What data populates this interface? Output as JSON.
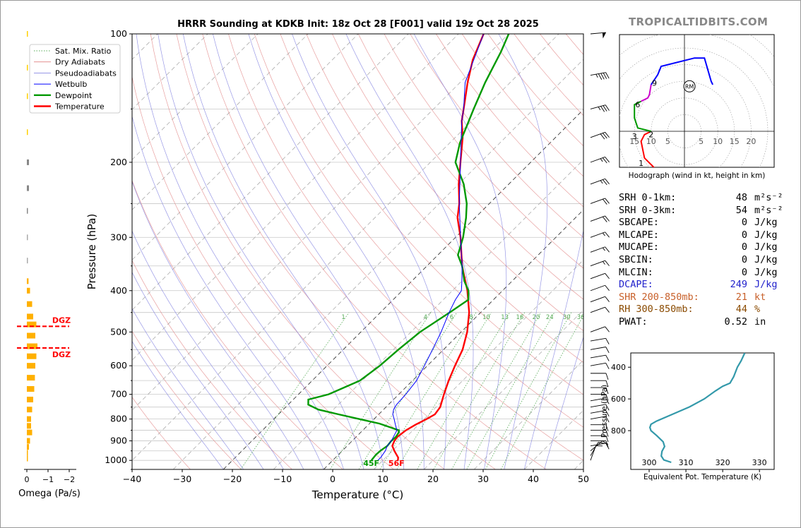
{
  "title": "HRRR Sounding at KDKB Init: 18z Oct 28 [F001] valid 19z Oct 28 2025",
  "brand": "TROPICALTIDBITS.COM",
  "colors": {
    "temperature": "#ff0000",
    "dewpoint": "#009900",
    "wetbulb": "#0000ff",
    "dcape": "#2222cc",
    "shr": "#c8602a",
    "rh": "#8a4a00",
    "omega": "#ffb000",
    "dgz": "#ff0000"
  },
  "chart_data": [
    {
      "type": "line",
      "name": "skewt",
      "xlabel": "Temperature (°C)",
      "ylabel": "Pressure (hPa)",
      "xlim": [
        -40,
        50
      ],
      "ylim": [
        1050,
        100
      ],
      "y_scale": "log",
      "x_ticks": [
        "−40",
        "−30",
        "−20",
        "−10",
        "0",
        "10",
        "20",
        "30",
        "40",
        "50"
      ],
      "y_ticks": [
        "100",
        "200",
        "300",
        "400",
        "500",
        "600",
        "700",
        "800",
        "900",
        "1000"
      ],
      "legend": [
        "Sat. Mix. Ratio",
        "Dry Adiabats",
        "Pseudoadiabats",
        "Wetbulb",
        "Dewpoint",
        "Temperature"
      ],
      "legend_placement": "top-left",
      "mixing_ratio_labels": [
        "1",
        "4",
        "6",
        "8",
        "10",
        "13",
        "16",
        "20",
        "24",
        "30",
        "36"
      ],
      "surface_labels": {
        "dewpoint": "45F",
        "temperature": "56F"
      },
      "series": [
        {
          "name": "Temperature",
          "points": [
            [
              1000,
              13
            ],
            [
              985,
              12.5
            ],
            [
              950,
              10.4
            ],
            [
              925,
              9
            ],
            [
              900,
              8.4
            ],
            [
              880,
              8.2
            ],
            [
              850,
              8.6
            ],
            [
              825,
              9.4
            ],
            [
              800,
              10.5
            ],
            [
              780,
              11.2
            ],
            [
              750,
              10.8
            ],
            [
              700,
              9
            ],
            [
              650,
              7.2
            ],
            [
              600,
              5.5
            ],
            [
              550,
              3.8
            ],
            [
              500,
              1.2
            ],
            [
              450,
              -2.3
            ],
            [
              400,
              -7
            ],
            [
              350,
              -13
            ],
            [
              300,
              -19
            ],
            [
              270,
              -23.5
            ],
            [
              250,
              -26
            ],
            [
              225,
              -30
            ],
            [
              200,
              -34
            ],
            [
              175,
              -38.5
            ],
            [
              160,
              -42
            ],
            [
              150,
              -44
            ],
            [
              130,
              -48.5
            ],
            [
              115,
              -52
            ],
            [
              100,
              -55
            ]
          ]
        },
        {
          "name": "Dewpoint",
          "points": [
            [
              1000,
              7.7
            ],
            [
              970,
              7.5
            ],
            [
              950,
              7.6
            ],
            [
              925,
              8
            ],
            [
              900,
              7.8
            ],
            [
              880,
              7.9
            ],
            [
              860,
              7.6
            ],
            [
              850,
              7.2
            ],
            [
              820,
              2
            ],
            [
              800,
              -3
            ],
            [
              780,
              -8
            ],
            [
              760,
              -13
            ],
            [
              740,
              -16
            ],
            [
              720,
              -17
            ],
            [
              700,
              -14
            ],
            [
              650,
              -10.5
            ],
            [
              600,
              -9.5
            ],
            [
              550,
              -9
            ],
            [
              500,
              -8.2
            ],
            [
              450,
              -6.2
            ],
            [
              420,
              -5
            ],
            [
              400,
              -6.8
            ],
            [
              380,
              -9.5
            ],
            [
              350,
              -13
            ],
            [
              330,
              -16
            ],
            [
              300,
              -18.5
            ],
            [
              270,
              -21.8
            ],
            [
              250,
              -24.5
            ],
            [
              225,
              -29
            ],
            [
              200,
              -35
            ],
            [
              180,
              -38
            ],
            [
              150,
              -42
            ],
            [
              130,
              -45
            ],
            [
              110,
              -48
            ],
            [
              100,
              -50
            ]
          ]
        },
        {
          "name": "Wetbulb",
          "points": [
            [
              1000,
              9
            ],
            [
              985,
              9
            ],
            [
              950,
              8.6
            ],
            [
              925,
              8
            ],
            [
              900,
              7.8
            ],
            [
              875,
              7.3
            ],
            [
              850,
              6.8
            ],
            [
              825,
              5.4
            ],
            [
              800,
              4
            ],
            [
              780,
              2.8
            ],
            [
              760,
              2
            ],
            [
              740,
              1.6
            ],
            [
              700,
              1.4
            ],
            [
              650,
              0.8
            ],
            [
              600,
              -0.6
            ],
            [
              550,
              -2.2
            ],
            [
              500,
              -4
            ],
            [
              450,
              -6.3
            ],
            [
              420,
              -7.6
            ],
            [
              400,
              -8.2
            ],
            [
              380,
              -10
            ],
            [
              350,
              -13
            ],
            [
              300,
              -19
            ],
            [
              250,
              -26
            ],
            [
              200,
              -34
            ],
            [
              160,
              -42
            ],
            [
              150,
              -44
            ],
            [
              130,
              -49
            ],
            [
              100,
              -55
            ]
          ]
        }
      ]
    },
    {
      "type": "line",
      "name": "hodograph",
      "xlabel": "Hodograph (wind in kt, height in km)",
      "ring_labels": [
        "15",
        "10",
        "5",
        "5",
        "10",
        "15",
        "20"
      ],
      "height_labels": [
        "1",
        "2",
        "3",
        "6",
        "9"
      ],
      "storm_motion_label": "RM",
      "segments": [
        {
          "color": "#ff0000",
          "points": [
            [
              -9,
              -11
            ],
            [
              -12,
              -8
            ],
            [
              -13,
              -3
            ],
            [
              -12,
              -1
            ],
            [
              -10,
              0
            ]
          ]
        },
        {
          "color": "#009900",
          "points": [
            [
              -10,
              0
            ],
            [
              -14,
              1
            ],
            [
              -15,
              4
            ],
            [
              -15,
              8
            ],
            [
              -13,
              9
            ]
          ]
        },
        {
          "color": "#cc00cc",
          "points": [
            [
              -13,
              9
            ],
            [
              -11,
              10
            ],
            [
              -10.5,
              11
            ],
            [
              -10,
              14
            ]
          ]
        },
        {
          "color": "#0000ff",
          "points": [
            [
              -10,
              14
            ],
            [
              -8,
              17
            ],
            [
              -7,
              19.5
            ],
            [
              3,
              22
            ],
            [
              6,
              22
            ],
            [
              8,
              15
            ],
            [
              8.5,
              14
            ]
          ]
        }
      ],
      "storm_motion": [
        1.5,
        13.5
      ]
    },
    {
      "type": "line",
      "name": "theta_e_profile",
      "xlabel": "Equivalent Pot. Temperature (K)",
      "ylabel": "Pressure (hPa)",
      "x_ticks": [
        "300",
        "310",
        "320",
        "330"
      ],
      "y_ticks": [
        "400",
        "600",
        "800"
      ],
      "xlim": [
        295,
        334
      ],
      "ylim": [
        1000,
        310
      ],
      "points": [
        [
          1000,
          306
        ],
        [
          985,
          304
        ],
        [
          960,
          303.3
        ],
        [
          930,
          303.5
        ],
        [
          900,
          304.2
        ],
        [
          870,
          303.8
        ],
        [
          830,
          302
        ],
        [
          800,
          300.5
        ],
        [
          780,
          300.2
        ],
        [
          760,
          300.5
        ],
        [
          740,
          302
        ],
        [
          700,
          306
        ],
        [
          650,
          311
        ],
        [
          600,
          315
        ],
        [
          550,
          318
        ],
        [
          520,
          320
        ],
        [
          500,
          322
        ],
        [
          460,
          323
        ],
        [
          430,
          323.5
        ],
        [
          400,
          324
        ],
        [
          360,
          325
        ],
        [
          310,
          326
        ]
      ]
    },
    {
      "type": "bar",
      "name": "omega",
      "xlabel": "Omega (Pa/s)",
      "x_ticks": [
        "0",
        "−1",
        "−2"
      ],
      "dgz_label": "DGZ",
      "dgz_levels": [
        485,
        545
      ],
      "levels": [
        100,
        120,
        140,
        170,
        200,
        230,
        260,
        300,
        340,
        380,
        400,
        430,
        460,
        480,
        510,
        540,
        570,
        600,
        640,
        680,
        720,
        760,
        800,
        830,
        860,
        900,
        930,
        960,
        990
      ],
      "values": [
        -0.05,
        -0.05,
        -0.05,
        -0.04,
        -0.1,
        -0.1,
        -0.05,
        -0.03,
        -0.04,
        -0.08,
        -0.15,
        -0.25,
        -0.3,
        -0.45,
        -0.4,
        -0.5,
        -0.45,
        -0.4,
        -0.38,
        -0.35,
        -0.3,
        -0.25,
        -0.2,
        -0.2,
        -0.25,
        -0.15,
        -0.1,
        -0.05,
        -0.03
      ]
    }
  ],
  "indices": [
    {
      "label": "SRH 0-1km:",
      "value": "48",
      "unit": "m²s⁻²",
      "color": "#000"
    },
    {
      "label": "SRH 0-3km:",
      "value": "54",
      "unit": "m²s⁻²",
      "color": "#000"
    },
    {
      "label": "SBCAPE:",
      "value": "0",
      "unit": "J/kg",
      "color": "#000"
    },
    {
      "label": "MLCAPE:",
      "value": "0",
      "unit": "J/kg",
      "color": "#000"
    },
    {
      "label": "MUCAPE:",
      "value": "0",
      "unit": "J/kg",
      "color": "#000"
    },
    {
      "label": "SBCIN:",
      "value": "0",
      "unit": "J/kg",
      "color": "#000"
    },
    {
      "label": "MLCIN:",
      "value": "0",
      "unit": "J/kg",
      "color": "#000"
    },
    {
      "label": "DCAPE:",
      "value": "249",
      "unit": "J/kg",
      "color": "#2222cc"
    },
    {
      "label": "SHR 200-850mb:",
      "value": "21",
      "unit": "kt",
      "color": "#c8602a"
    },
    {
      "label": "RH 300-850mb:",
      "value": "44",
      "unit": "%",
      "color": "#8a4a00"
    },
    {
      "label": "PWAT:",
      "value": "0.52",
      "unit": "in",
      "color": "#000"
    }
  ],
  "wind_barbs": {
    "levels": [
      1000,
      975,
      950,
      925,
      900,
      875,
      850,
      825,
      800,
      775,
      750,
      725,
      700,
      675,
      650,
      625,
      600,
      575,
      550,
      525,
      500,
      450,
      425,
      400,
      375,
      350,
      325,
      300,
      275,
      250,
      225,
      200,
      175,
      150,
      125,
      100
    ],
    "speeds": [
      10,
      10,
      10,
      10,
      10,
      10,
      10,
      10,
      10,
      10,
      10,
      10,
      10,
      10,
      10,
      10,
      10,
      10,
      10,
      10,
      10,
      10,
      10,
      10,
      10,
      15,
      15,
      15,
      20,
      20,
      25,
      25,
      30,
      35,
      45,
      50
    ],
    "dirs": [
      200,
      210,
      230,
      260,
      270,
      270,
      270,
      270,
      260,
      260,
      260,
      260,
      270,
      270,
      270,
      270,
      260,
      260,
      260,
      260,
      250,
      250,
      250,
      250,
      250,
      250,
      250,
      250,
      250,
      250,
      250,
      250,
      250,
      255,
      260,
      265
    ]
  }
}
